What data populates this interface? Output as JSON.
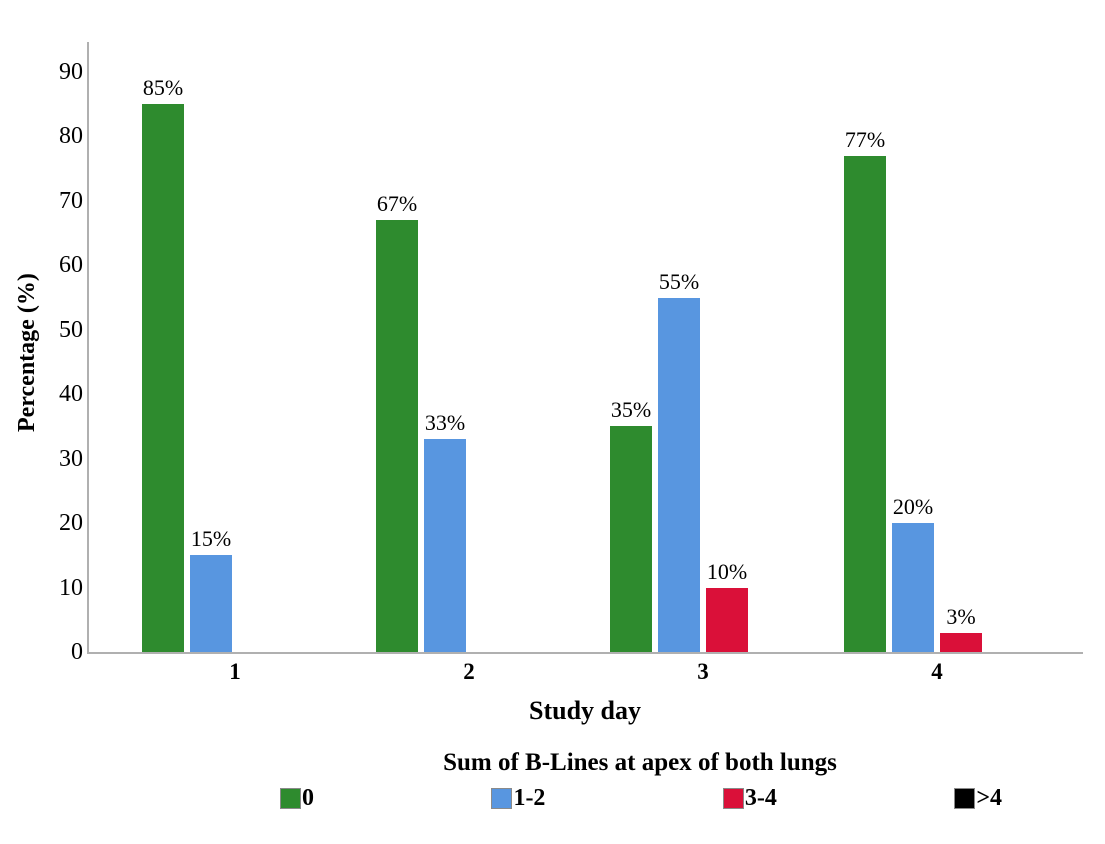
{
  "chart_data": {
    "type": "bar",
    "title": "",
    "categories": [
      "1",
      "2",
      "3",
      "4"
    ],
    "xlabel": "Study day",
    "ylabel": "Percentage (%)",
    "ylim": [
      0,
      90
    ],
    "yticks": [
      0,
      10,
      20,
      30,
      40,
      50,
      60,
      70,
      80,
      90
    ],
    "grid": false,
    "legend_position": "bottom",
    "legend_title": "Sum of B-Lines at apex of both lungs",
    "series": [
      {
        "name": "0",
        "color": "#2e8b2e",
        "values": [
          85,
          67,
          35,
          77
        ],
        "labels": [
          "85%",
          "67%",
          "35%",
          "77%"
        ]
      },
      {
        "name": "1-2",
        "color": "#5896e0",
        "values": [
          15,
          33,
          55,
          20
        ],
        "labels": [
          "15%",
          "33%",
          "55%",
          "20%"
        ]
      },
      {
        "name": "3-4",
        "color": "#da1039",
        "values": [
          0,
          0,
          10,
          3
        ],
        "labels": [
          "",
          "",
          "10%",
          "3%"
        ]
      },
      {
        "name": ">4",
        "color": "#000000",
        "values": [
          0,
          0,
          0,
          0
        ],
        "labels": [
          "",
          "",
          "",
          ""
        ]
      }
    ]
  },
  "colors": {
    "axis_line": "#b0b0b0",
    "text": "#000000",
    "background": "#ffffff"
  }
}
